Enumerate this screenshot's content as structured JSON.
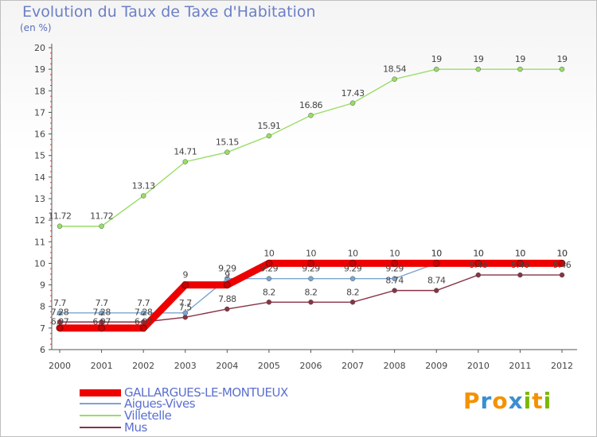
{
  "header": {
    "title": "Evolution du Taux de Taxe d'Habitation",
    "unit": "(en %)"
  },
  "logo": {
    "text": "Proxiti",
    "letters": [
      "P",
      "r",
      "o",
      "x",
      "i",
      "t",
      "i"
    ],
    "colors": [
      "#f39200",
      "#3a8fd0",
      "#f39200",
      "#3a8fd0",
      "#7ab800",
      "#f39200",
      "#7ab800"
    ]
  },
  "chart_data": {
    "type": "line",
    "x": [
      "2000",
      "2001",
      "2002",
      "2003",
      "2004",
      "2005",
      "2006",
      "2007",
      "2008",
      "2009",
      "2010",
      "2011",
      "2012"
    ],
    "ylim": [
      6,
      20
    ],
    "yticks": [
      "6",
      "7",
      "8",
      "9",
      "10",
      "11",
      "12",
      "13",
      "14",
      "15",
      "16",
      "17",
      "18",
      "19",
      "20"
    ],
    "grid": false,
    "legend_position": "bottom-left",
    "series": [
      {
        "name": "GALLARGUES-LE-MONTUEUX",
        "color": "#ee0000",
        "values": [
          7,
          7,
          7,
          9,
          9,
          10,
          10,
          10,
          10,
          10,
          10,
          10,
          10
        ],
        "labels": [
          "",
          "",
          "",
          "9",
          "9",
          "10",
          "10",
          "10",
          "10",
          "10",
          "10",
          "10",
          "10"
        ]
      },
      {
        "name": "Aigues-Vives",
        "color": "#7aa6cf",
        "values": [
          7.7,
          7.7,
          7.7,
          7.7,
          9.29,
          9.29,
          9.29,
          9.29,
          9.29,
          10,
          10,
          10,
          10
        ],
        "labels": [
          "7.7",
          "7.7",
          "7.7",
          "7.7",
          "9.29",
          "9.29",
          "9.29",
          "9.29",
          "9.29",
          "10",
          "10",
          "10",
          "10"
        ]
      },
      {
        "name": "Villetelle",
        "color": "#99dd66",
        "values": [
          11.72,
          11.72,
          13.13,
          14.71,
          15.15,
          15.91,
          16.86,
          17.43,
          18.54,
          19,
          19,
          19,
          19
        ],
        "labels": [
          "11.72",
          "11.72",
          "13.13",
          "14.71",
          "15.15",
          "15.91",
          "16.86",
          "17.43",
          "18.54",
          "19",
          "19",
          "19",
          "19"
        ]
      },
      {
        "name": "Mus",
        "color": "#883344",
        "values": [
          7.28,
          7.28,
          7.28,
          7.5,
          7.88,
          8.2,
          8.2,
          8.2,
          8.74,
          8.74,
          9.46,
          9.46,
          9.46
        ],
        "labels": [
          "7.28",
          "7.28",
          "7.28",
          "7.5",
          "7.88",
          "8.2",
          "8.2",
          "8.2",
          "8.74",
          "8.74",
          "9.46",
          "9.46",
          "9.46"
        ]
      }
    ],
    "extra_labels": [
      "6.97",
      "6.97",
      "6.97"
    ]
  }
}
